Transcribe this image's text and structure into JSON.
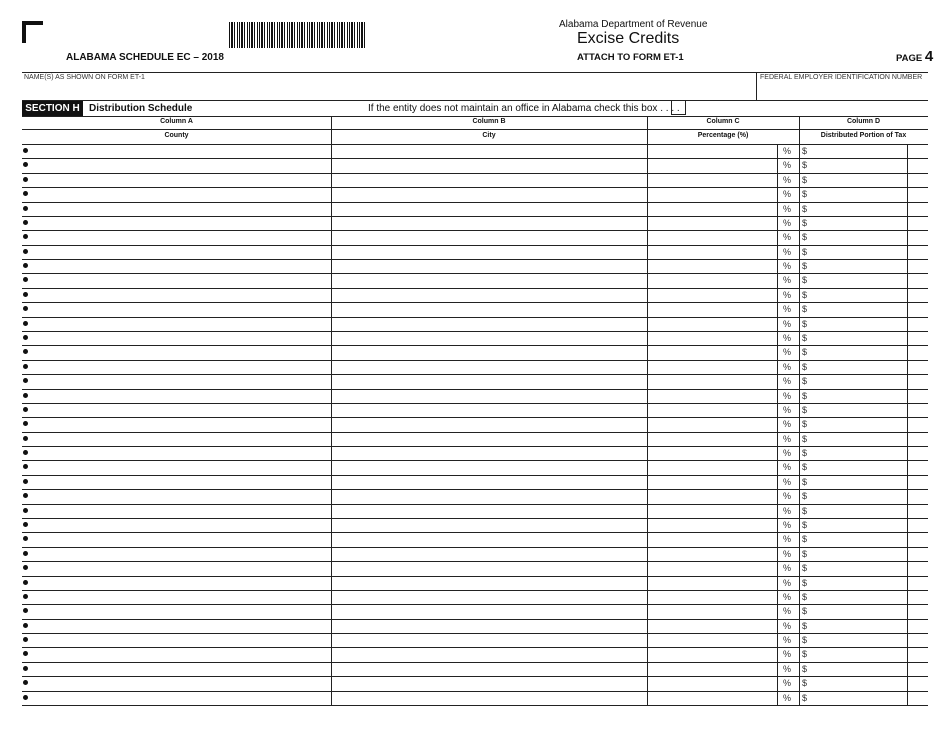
{
  "header": {
    "schedule": "ALABAMA SCHEDULE EC – 2018",
    "department": "Alabama Department of Revenue",
    "title": "Excise Credits",
    "attach": "ATTACH TO FORM ET-1",
    "page_label": "PAGE",
    "page_number": "4"
  },
  "fields": {
    "name_label": "NAME(S) AS SHOWN ON FORM ET-1",
    "name_value": "",
    "fein_label": "FEDERAL EMPLOYER IDENTIFICATION NUMBER",
    "fein_value": ""
  },
  "section": {
    "tag": "SECTION H",
    "name": "Distribution Schedule",
    "checkbox_text": "If the entity does not maintain an office in Alabama check this box . . . .",
    "checked": false
  },
  "columns": [
    {
      "col": "Column A",
      "label": "County"
    },
    {
      "col": "Column B",
      "label": "City"
    },
    {
      "col": "Column C",
      "label": "Percentage (%)"
    },
    {
      "col": "Column D",
      "label": "Distributed Portion of Tax"
    }
  ],
  "row_symbols": {
    "percent": "%",
    "dollar": "$"
  },
  "rows": [
    {
      "county": "",
      "city": "",
      "percentage": "",
      "amount": ""
    },
    {
      "county": "",
      "city": "",
      "percentage": "",
      "amount": ""
    },
    {
      "county": "",
      "city": "",
      "percentage": "",
      "amount": ""
    },
    {
      "county": "",
      "city": "",
      "percentage": "",
      "amount": ""
    },
    {
      "county": "",
      "city": "",
      "percentage": "",
      "amount": ""
    },
    {
      "county": "",
      "city": "",
      "percentage": "",
      "amount": ""
    },
    {
      "county": "",
      "city": "",
      "percentage": "",
      "amount": ""
    },
    {
      "county": "",
      "city": "",
      "percentage": "",
      "amount": ""
    },
    {
      "county": "",
      "city": "",
      "percentage": "",
      "amount": ""
    },
    {
      "county": "",
      "city": "",
      "percentage": "",
      "amount": ""
    },
    {
      "county": "",
      "city": "",
      "percentage": "",
      "amount": ""
    },
    {
      "county": "",
      "city": "",
      "percentage": "",
      "amount": ""
    },
    {
      "county": "",
      "city": "",
      "percentage": "",
      "amount": ""
    },
    {
      "county": "",
      "city": "",
      "percentage": "",
      "amount": ""
    },
    {
      "county": "",
      "city": "",
      "percentage": "",
      "amount": ""
    },
    {
      "county": "",
      "city": "",
      "percentage": "",
      "amount": ""
    },
    {
      "county": "",
      "city": "",
      "percentage": "",
      "amount": ""
    },
    {
      "county": "",
      "city": "",
      "percentage": "",
      "amount": ""
    },
    {
      "county": "",
      "city": "",
      "percentage": "",
      "amount": ""
    },
    {
      "county": "",
      "city": "",
      "percentage": "",
      "amount": ""
    },
    {
      "county": "",
      "city": "",
      "percentage": "",
      "amount": ""
    },
    {
      "county": "",
      "city": "",
      "percentage": "",
      "amount": ""
    },
    {
      "county": "",
      "city": "",
      "percentage": "",
      "amount": ""
    },
    {
      "county": "",
      "city": "",
      "percentage": "",
      "amount": ""
    },
    {
      "county": "",
      "city": "",
      "percentage": "",
      "amount": ""
    },
    {
      "county": "",
      "city": "",
      "percentage": "",
      "amount": ""
    },
    {
      "county": "",
      "city": "",
      "percentage": "",
      "amount": ""
    },
    {
      "county": "",
      "city": "",
      "percentage": "",
      "amount": ""
    },
    {
      "county": "",
      "city": "",
      "percentage": "",
      "amount": ""
    },
    {
      "county": "",
      "city": "",
      "percentage": "",
      "amount": ""
    },
    {
      "county": "",
      "city": "",
      "percentage": "",
      "amount": ""
    },
    {
      "county": "",
      "city": "",
      "percentage": "",
      "amount": ""
    },
    {
      "county": "",
      "city": "",
      "percentage": "",
      "amount": ""
    },
    {
      "county": "",
      "city": "",
      "percentage": "",
      "amount": ""
    },
    {
      "county": "",
      "city": "",
      "percentage": "",
      "amount": ""
    },
    {
      "county": "",
      "city": "",
      "percentage": "",
      "amount": ""
    },
    {
      "county": "",
      "city": "",
      "percentage": "",
      "amount": ""
    },
    {
      "county": "",
      "city": "",
      "percentage": "",
      "amount": ""
    },
    {
      "county": "",
      "city": "",
      "percentage": "",
      "amount": ""
    }
  ]
}
